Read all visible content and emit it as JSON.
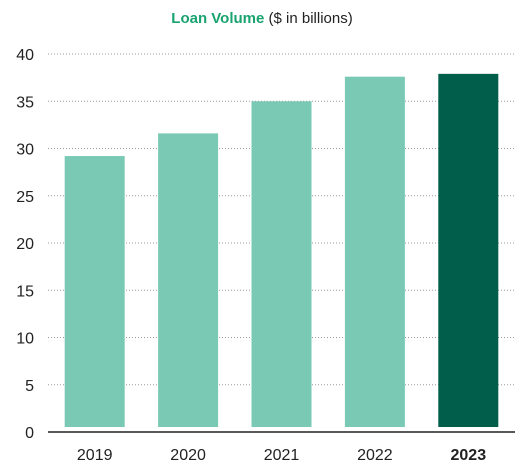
{
  "chart_data": {
    "type": "bar",
    "title": "Loan Volume",
    "subtitle": "($ in billions)",
    "categories": [
      "2019",
      "2020",
      "2021",
      "2022",
      "2023"
    ],
    "values": [
      29.2,
      31.6,
      35.0,
      37.6,
      37.9
    ],
    "highlight_category": "2023",
    "ylim": [
      0,
      40
    ],
    "yticks": [
      0,
      5,
      10,
      15,
      20,
      25,
      30,
      35,
      40
    ],
    "grid": true,
    "colors": {
      "bar": "#7ac9b5",
      "highlight_bar": "#005e4b",
      "title": "#1aa36f",
      "grid": "#9a9a9a",
      "axis": "#222222"
    }
  }
}
